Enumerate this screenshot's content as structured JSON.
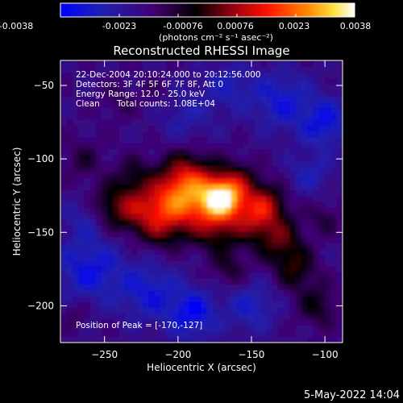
{
  "colors": {
    "background": "#000000",
    "foreground": "#ffffff",
    "colormap": "rainbow (blue-purple-red-orange-yellow-white)"
  },
  "colorbar": {
    "min": -0.0038,
    "max": 0.0038,
    "tick_labels": [
      "-0.0038",
      "-0.0023",
      "-0.00076",
      "0.00076",
      "0.0023",
      "0.0038"
    ],
    "units": "(photons cm⁻² s⁻¹ asec⁻²)"
  },
  "image_info": {
    "line1": "22-Dec-2004 20:10:24.000 to 20:12:56.000",
    "line2": "Detectors: 3F 4F 5F 6F 7F 8F, Att 0",
    "line3": "Energy Range: 12.0 - 25.0 keV",
    "line4_method": "Clean",
    "line4_counts": "Total counts: 1.08E+04",
    "peak_label": "Position of Peak = [-170,-127]"
  },
  "footer": {
    "date": "5-May-2022 14:04"
  },
  "chart_data": {
    "type": "heatmap",
    "title": "Reconstructed RHESSI Image",
    "xlabel": "Heliocentric X (arcsec)",
    "ylabel": "Heliocentric Y (arcsec)",
    "xlim": [
      -280,
      -88
    ],
    "ylim": [
      -225,
      -33
    ],
    "xticks": [
      -250,
      -200,
      -150,
      -100
    ],
    "yticks": [
      -200,
      -150,
      -100,
      -50
    ],
    "peak": {
      "x": -170,
      "y": -127
    },
    "sources": [
      {
        "x": -170,
        "y": -127,
        "amp": 0.0038,
        "sigma": 9
      },
      {
        "x": -185,
        "y": -128,
        "amp": 0.0026,
        "sigma": 14
      },
      {
        "x": -205,
        "y": -130,
        "amp": 0.0022,
        "sigma": 13
      },
      {
        "x": -225,
        "y": -135,
        "amp": 0.0018,
        "sigma": 12
      },
      {
        "x": -245,
        "y": -132,
        "amp": 0.0014,
        "sigma": 11
      },
      {
        "x": -150,
        "y": -140,
        "amp": 0.002,
        "sigma": 12
      },
      {
        "x": -130,
        "y": -155,
        "amp": 0.0016,
        "sigma": 11
      },
      {
        "x": -195,
        "y": -110,
        "amp": 0.0018,
        "sigma": 12
      },
      {
        "x": -160,
        "y": -115,
        "amp": 0.0015,
        "sigma": 10
      },
      {
        "x": -140,
        "y": -130,
        "amp": 0.0016,
        "sigma": 10
      },
      {
        "x": -120,
        "y": -175,
        "amp": 0.0014,
        "sigma": 10
      },
      {
        "x": -105,
        "y": -200,
        "amp": 0.0012,
        "sigma": 10
      },
      {
        "x": -175,
        "y": -150,
        "amp": 0.0013,
        "sigma": 10
      },
      {
        "x": -210,
        "y": -150,
        "amp": 0.001,
        "sigma": 10
      },
      {
        "x": -165,
        "y": -175,
        "amp": 0.001,
        "sigma": 9
      },
      {
        "x": -230,
        "y": -110,
        "amp": 0.0009,
        "sigma": 9
      },
      {
        "x": -265,
        "y": -100,
        "amp": 0.0008,
        "sigma": 10
      },
      {
        "x": -240,
        "y": -60,
        "amp": 0.0006,
        "sigma": 9
      },
      {
        "x": -215,
        "y": -55,
        "amp": 0.0005,
        "sigma": 8
      },
      {
        "x": -270,
        "y": -205,
        "amp": 0.0007,
        "sigma": 7
      },
      {
        "x": -100,
        "y": -140,
        "amp": 0.0008,
        "sigma": 8
      },
      {
        "x": -195,
        "y": -70,
        "amp": -0.0008,
        "sigma": 14
      },
      {
        "x": -260,
        "y": -175,
        "amp": -0.0016,
        "sigma": 16
      },
      {
        "x": -220,
        "y": -190,
        "amp": -0.0014,
        "sigma": 14
      },
      {
        "x": -190,
        "y": -205,
        "amp": -0.0018,
        "sigma": 12
      },
      {
        "x": -150,
        "y": -200,
        "amp": -0.0012,
        "sigma": 12
      },
      {
        "x": -130,
        "y": -60,
        "amp": -0.0014,
        "sigma": 14
      },
      {
        "x": -100,
        "y": -75,
        "amp": -0.0016,
        "sigma": 12
      },
      {
        "x": -110,
        "y": -110,
        "amp": -0.001,
        "sigma": 10
      },
      {
        "x": -265,
        "y": -140,
        "amp": -0.0008,
        "sigma": 10
      },
      {
        "x": -165,
        "y": -50,
        "amp": -0.001,
        "sigma": 12
      }
    ]
  }
}
